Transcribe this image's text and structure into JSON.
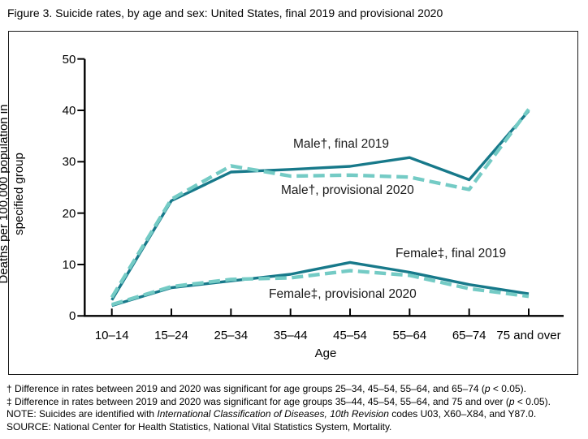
{
  "title": "Figure 3. Suicide rates, by age and sex: United States, final 2019 and provisional 2020",
  "chart_data": {
    "type": "line",
    "title": "Figure 3. Suicide rates, by age and sex: United States, final 2019 and provisional 2020",
    "categories": [
      "10–14",
      "15–24",
      "25–34",
      "35–44",
      "45–54",
      "55–64",
      "65–74",
      "75 and over"
    ],
    "xlabel": "Age",
    "ylabel": "Deaths per 100,000 population in specified group",
    "ylim": [
      0,
      50
    ],
    "y_ticks": [
      0,
      10,
      20,
      30,
      40,
      50
    ],
    "grid": false,
    "legend_position": "inline-annotations",
    "series": [
      {
        "name": "Male†, final 2019",
        "style": "solid",
        "color": "#17798a",
        "values": [
          3.1,
          22.4,
          28.0,
          28.5,
          29.1,
          30.8,
          26.5,
          39.9
        ]
      },
      {
        "name": "Male†, provisional 2020",
        "style": "dashed",
        "color": "#74cbc5",
        "values": [
          3.6,
          22.7,
          29.2,
          27.2,
          27.4,
          27.0,
          24.6,
          40.2
        ]
      },
      {
        "name": "Female‡, final 2019",
        "style": "solid",
        "color": "#17798a",
        "values": [
          2.0,
          5.5,
          6.8,
          8.1,
          10.4,
          8.5,
          6.1,
          4.3
        ]
      },
      {
        "name": "Female‡, provisional 2020",
        "style": "dashed",
        "color": "#74cbc5",
        "values": [
          2.2,
          5.7,
          7.1,
          7.4,
          8.8,
          7.9,
          5.3,
          3.8
        ]
      }
    ],
    "axis_color": "#000000"
  },
  "footnotes": [
    [
      {
        "text": "† Difference in rates between 2019 and 2020 was significant for age groups 25–34, 45–54, 55–64, and 65–74 ("
      },
      {
        "text": "p",
        "italic": true
      },
      {
        "text": " < 0.05)."
      }
    ],
    [
      {
        "text": "‡ Difference in rates between 2019 and 2020 was significant for age groups 35–44, 45–54, 55–64, and 75 and over ("
      },
      {
        "text": "p",
        "italic": true
      },
      {
        "text": " < 0.05)."
      }
    ],
    [
      {
        "text": "NOTE: Suicides are identified with "
      },
      {
        "text": "International Classification of Diseases, 10th Revision",
        "italic": true
      },
      {
        "text": " codes U03, X60–X84, and Y87.0."
      }
    ],
    [
      {
        "text": "SOURCE: National Center for Health Statistics, National Vital Statistics System, Mortality."
      }
    ]
  ]
}
